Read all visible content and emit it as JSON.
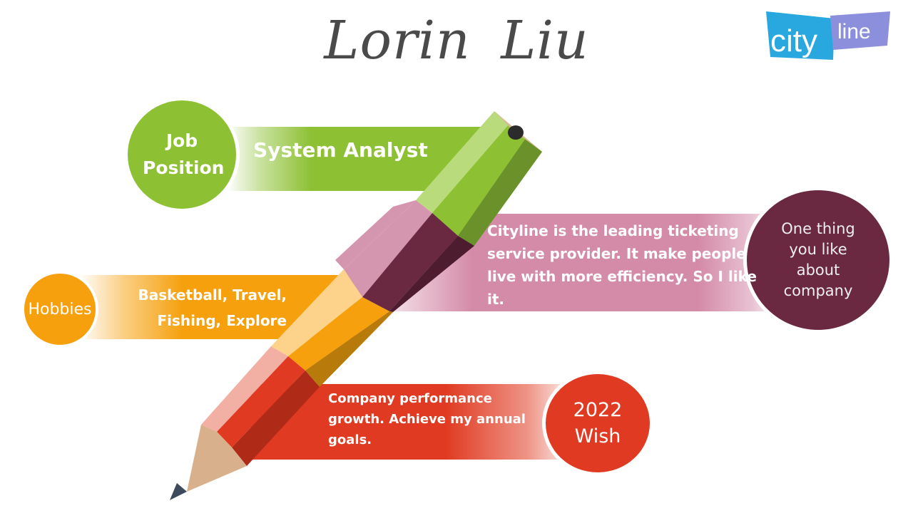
{
  "title": "Lorin  Liu",
  "logo": {
    "text_part1": "city",
    "text_part2": "line",
    "colors": {
      "blue": "#29a8e0",
      "purple": "#8b8fdc"
    }
  },
  "items": {
    "job": {
      "label": "Job Position",
      "value": "System Analyst",
      "color": "#8dc033"
    },
    "hobby": {
      "label": "Hobbies",
      "value": "Basketball, Travel, Fishing, Explore",
      "color": "#f5a00c"
    },
    "like": {
      "label": "One thing you like about company",
      "value": "Cityline is the leading ticketing service provider. It make people live with more efficiency. So I like it.",
      "color": "#6a2941"
    },
    "wish": {
      "label": "2022 Wish",
      "value": "Company performance growth.  Achieve my annual goals.",
      "color": "#e03b22"
    }
  }
}
